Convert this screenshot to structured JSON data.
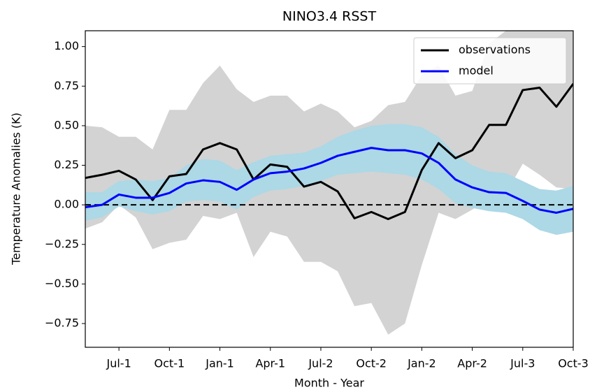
{
  "chart_data": {
    "type": "line",
    "title": "NINO3.4 RSST",
    "xlabel": "Month - Year",
    "ylabel": "Temperature Anomalies (K)",
    "x": [
      0,
      1,
      2,
      3,
      4,
      5,
      6,
      7,
      8,
      9,
      10,
      11,
      12,
      13,
      14,
      15,
      16,
      17,
      18,
      19,
      20,
      21,
      22,
      23,
      24,
      25,
      26,
      27,
      28,
      29
    ],
    "xlim": [
      0,
      29
    ],
    "xticks": [
      {
        "value": 2,
        "label": "Jul-1"
      },
      {
        "value": 5,
        "label": "Oct-1"
      },
      {
        "value": 8,
        "label": "Jan-1"
      },
      {
        "value": 11,
        "label": "Apr-1"
      },
      {
        "value": 14,
        "label": "Jul-2"
      },
      {
        "value": 17,
        "label": "Oct-2"
      },
      {
        "value": 20,
        "label": "Jan-2"
      },
      {
        "value": 23,
        "label": "Apr-2"
      },
      {
        "value": 26,
        "label": "Jul-3"
      },
      {
        "value": 29,
        "label": "Oct-3"
      }
    ],
    "ylim": [
      -0.9,
      1.1
    ],
    "yticks": [
      {
        "value": -0.75,
        "label": "−0.75"
      },
      {
        "value": -0.5,
        "label": "−0.50"
      },
      {
        "value": -0.25,
        "label": "−0.25"
      },
      {
        "value": 0,
        "label": "0.00"
      },
      {
        "value": 0.25,
        "label": "0.25"
      },
      {
        "value": 0.5,
        "label": "0.50"
      },
      {
        "value": 0.75,
        "label": "0.75"
      },
      {
        "value": 1,
        "label": "1.00"
      }
    ],
    "bands": [
      {
        "color": "#d3d3d3",
        "upper": [
          0.5,
          0.49,
          0.43,
          0.43,
          0.35,
          0.6,
          0.6,
          0.77,
          0.88,
          0.73,
          0.65,
          0.69,
          0.69,
          0.59,
          0.64,
          0.59,
          0.49,
          0.53,
          0.63,
          0.65,
          0.82,
          0.88,
          0.69,
          0.72,
          1.02,
          1.1,
          1.1,
          1.1,
          1.1,
          1.1
        ],
        "lower": [
          -0.15,
          -0.11,
          0.0,
          -0.08,
          -0.28,
          -0.24,
          -0.22,
          -0.07,
          -0.09,
          -0.05,
          -0.33,
          -0.17,
          -0.2,
          -0.36,
          -0.36,
          -0.42,
          -0.64,
          -0.62,
          -0.82,
          -0.75,
          -0.38,
          -0.05,
          -0.09,
          -0.03,
          0.04,
          0.07,
          0.26,
          0.19,
          0.11,
          0.1
        ]
      },
      {
        "color": "#add8e6",
        "upper": [
          0.08,
          0.08,
          0.15,
          0.16,
          0.15,
          0.17,
          0.25,
          0.29,
          0.28,
          0.22,
          0.27,
          0.31,
          0.32,
          0.33,
          0.37,
          0.43,
          0.47,
          0.5,
          0.51,
          0.51,
          0.49,
          0.43,
          0.32,
          0.25,
          0.21,
          0.2,
          0.15,
          0.1,
          0.09,
          0.12
        ],
        "lower": [
          -0.1,
          -0.08,
          -0.01,
          -0.04,
          -0.06,
          -0.04,
          0.02,
          0.03,
          0.02,
          -0.03,
          0.05,
          0.09,
          0.1,
          0.12,
          0.15,
          0.19,
          0.2,
          0.21,
          0.2,
          0.19,
          0.16,
          0.1,
          0.01,
          -0.02,
          -0.04,
          -0.05,
          -0.09,
          -0.16,
          -0.19,
          -0.17
        ]
      }
    ],
    "reference_line": {
      "value": 0,
      "color": "#000000",
      "dashed": true
    },
    "series": [
      {
        "name": "observations",
        "color": "#000000",
        "values": [
          0.17,
          0.19,
          0.215,
          0.16,
          0.03,
          0.18,
          0.195,
          0.35,
          0.39,
          0.35,
          0.16,
          0.255,
          0.24,
          0.115,
          0.145,
          0.085,
          -0.085,
          -0.045,
          -0.09,
          -0.045,
          0.22,
          0.39,
          0.295,
          0.345,
          0.505,
          0.505,
          0.725,
          0.74,
          0.62,
          0.765
        ]
      },
      {
        "name": "model",
        "color": "#0000ff",
        "values": [
          -0.015,
          0.0,
          0.065,
          0.045,
          0.045,
          0.075,
          0.135,
          0.155,
          0.145,
          0.095,
          0.16,
          0.2,
          0.21,
          0.23,
          0.265,
          0.31,
          0.335,
          0.36,
          0.345,
          0.345,
          0.325,
          0.265,
          0.16,
          0.11,
          0.08,
          0.075,
          0.025,
          -0.03,
          -0.05,
          -0.025
        ]
      }
    ],
    "legend": "upper right",
    "grid": false
  }
}
